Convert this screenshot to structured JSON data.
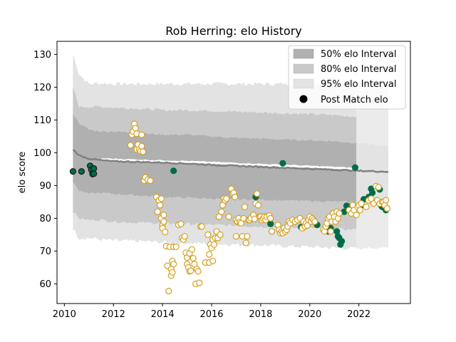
{
  "chart_data": {
    "type": "scatter",
    "title": "Rob Herring: elo History",
    "xlabel": "",
    "ylabel": "elo score",
    "xlim": [
      2009.7,
      2024.1
    ],
    "ylim": [
      54,
      134
    ],
    "x_ticks": [
      2010,
      2012,
      2014,
      2016,
      2018,
      2020,
      2022
    ],
    "y_ticks": [
      60,
      70,
      80,
      90,
      100,
      110,
      120,
      130
    ],
    "grid": false,
    "legend_position": "top-right",
    "legend": {
      "band50": "50% elo Interval",
      "band80": "80% elo Interval",
      "band95": "95% elo Interval",
      "points": "Post Match elo"
    },
    "colors": {
      "band50": "#b0b0b0",
      "band80": "#c9c9c9",
      "band95": "#e3e3e3",
      "median_line": "#808080",
      "white_line": "#ffffff",
      "win_fill": "#006d4a",
      "loss_fill": "#ffffff",
      "loss_edge": "#d4a020",
      "early_edge": "#1a1a1a"
    },
    "bands": {
      "x": [
        2010.35,
        2010.6,
        2011.0,
        2011.5,
        2012.0,
        2013.0,
        2014.0,
        2015.0,
        2016.0,
        2017.0,
        2018.0,
        2019.0,
        2020.0,
        2021.0,
        2021.9
      ],
      "p50_low": [
        91.0,
        88.5,
        87.5,
        87.8,
        87.5,
        87.0,
        86.5,
        86.3,
        86.0,
        85.8,
        85.7,
        85.5,
        85.3,
        85.1,
        85.0
      ],
      "p50_high": [
        112.0,
        109.0,
        107.0,
        106.5,
        106.5,
        106.0,
        105.5,
        105.5,
        105.0,
        104.5,
        104.3,
        104.0,
        103.8,
        103.5,
        103.0
      ],
      "p80_low": [
        82.0,
        80.0,
        79.5,
        79.5,
        79.0,
        78.7,
        78.5,
        78.3,
        78.0,
        77.8,
        77.5,
        77.3,
        77.0,
        76.8,
        76.5
      ],
      "p80_high": [
        120.0,
        114.0,
        114.0,
        114.0,
        113.8,
        113.5,
        113.0,
        113.0,
        112.8,
        112.5,
        112.3,
        112.0,
        111.8,
        111.5,
        111.0
      ],
      "p95_low": [
        77.0,
        74.0,
        74.0,
        73.5,
        73.2,
        73.0,
        72.7,
        72.5,
        72.2,
        72.0,
        71.8,
        71.5,
        71.3,
        71.0,
        70.8
      ],
      "p95_high": [
        130.0,
        124.0,
        121.0,
        121.2,
        121.0,
        121.0,
        121.0,
        121.0,
        121.0,
        121.0,
        121.0,
        121.0,
        121.0,
        121.0,
        121.0
      ]
    },
    "tail_bands": {
      "x": [
        2021.9,
        2022.5,
        2023.2
      ],
      "p50_low": [
        85.0,
        85.5,
        86.0
      ],
      "p50_high": [
        103.0,
        102.5,
        102.0
      ],
      "p95_low": [
        70.8,
        71.0,
        71.0
      ],
      "p95_high": [
        121.0,
        121.5,
        122.0
      ]
    },
    "median": {
      "x": [
        2010.35,
        2010.6,
        2011.0,
        2011.5,
        2012.0,
        2013.0,
        2014.0,
        2015.0,
        2016.0,
        2017.0,
        2018.0,
        2019.0,
        2020.0,
        2021.0,
        2022.0,
        2023.2
      ],
      "y": [
        101.0,
        99.2,
        98.2,
        97.7,
        97.4,
        97.2,
        97.0,
        96.7,
        96.3,
        96.0,
        95.7,
        95.4,
        95.1,
        94.8,
        94.5,
        94.2
      ]
    },
    "upper_line": {
      "x": [
        2011.5,
        2013.0,
        2015.0,
        2017.0,
        2019.0,
        2021.0,
        2022.0
      ],
      "y": [
        98.0,
        97.6,
        97.2,
        96.6,
        96.0,
        95.4,
        95.0
      ]
    },
    "series": [
      {
        "name": "early",
        "style": "early",
        "points": [
          [
            2010.35,
            94.3
          ],
          [
            2010.7,
            94.3
          ],
          [
            2011.05,
            96.0
          ],
          [
            2011.1,
            94.8
          ],
          [
            2011.15,
            93.5
          ],
          [
            2011.2,
            95.2
          ],
          [
            2011.2,
            93.6
          ]
        ]
      },
      {
        "name": "wins",
        "style": "win",
        "points": [
          [
            2014.45,
            94.5
          ],
          [
            2017.8,
            86.5
          ],
          [
            2018.4,
            78.3
          ],
          [
            2018.45,
            76.0
          ],
          [
            2018.9,
            96.8
          ],
          [
            2019.65,
            77.3
          ],
          [
            2020.3,
            78.0
          ],
          [
            2020.75,
            76.0
          ],
          [
            2020.85,
            77.0
          ],
          [
            2021.0,
            81.0
          ],
          [
            2021.1,
            76.0
          ],
          [
            2021.15,
            74.5
          ],
          [
            2021.2,
            74.0
          ],
          [
            2021.25,
            72.0
          ],
          [
            2021.3,
            73.0
          ],
          [
            2021.4,
            82.0
          ],
          [
            2021.5,
            83.8
          ],
          [
            2021.6,
            83.5
          ],
          [
            2021.85,
            95.5
          ],
          [
            2022.1,
            84.0
          ],
          [
            2022.2,
            85.8
          ],
          [
            2022.4,
            86.5
          ],
          [
            2022.5,
            89.0
          ],
          [
            2022.55,
            87.8
          ],
          [
            2022.85,
            88.8
          ],
          [
            2022.9,
            84.0
          ],
          [
            2022.95,
            83.5
          ],
          [
            2023.05,
            83.8
          ],
          [
            2023.1,
            82.5
          ]
        ]
      },
      {
        "name": "losses",
        "style": "loss",
        "points": [
          [
            2012.7,
            102.3
          ],
          [
            2012.75,
            105.5
          ],
          [
            2012.8,
            106.5
          ],
          [
            2012.85,
            108.8
          ],
          [
            2012.9,
            107.5
          ],
          [
            2012.95,
            105.8
          ],
          [
            2012.95,
            101.0
          ],
          [
            2013.0,
            102.5
          ],
          [
            2013.05,
            101.0
          ],
          [
            2013.1,
            100.5
          ],
          [
            2013.15,
            105.5
          ],
          [
            2013.15,
            102.0
          ],
          [
            2013.2,
            100.3
          ],
          [
            2013.25,
            91.5
          ],
          [
            2013.3,
            92.5
          ],
          [
            2013.4,
            91.8
          ],
          [
            2013.5,
            91.5
          ],
          [
            2013.75,
            86.5
          ],
          [
            2013.8,
            82.0
          ],
          [
            2013.85,
            85.5
          ],
          [
            2013.9,
            84.0
          ],
          [
            2013.95,
            86.0
          ],
          [
            2013.95,
            80.0
          ],
          [
            2014.0,
            78.0
          ],
          [
            2014.0,
            77.0
          ],
          [
            2014.05,
            81.0
          ],
          [
            2014.05,
            79.0
          ],
          [
            2014.1,
            75.8
          ],
          [
            2014.15,
            71.5
          ],
          [
            2014.2,
            65.5
          ],
          [
            2014.25,
            57.8
          ],
          [
            2014.3,
            71.3
          ],
          [
            2014.35,
            64.5
          ],
          [
            2014.35,
            62.5
          ],
          [
            2014.4,
            67.0
          ],
          [
            2014.4,
            63.5
          ],
          [
            2014.45,
            66.0
          ],
          [
            2014.45,
            71.3
          ],
          [
            2014.55,
            71.3
          ],
          [
            2014.65,
            78.0
          ],
          [
            2014.75,
            78.3
          ],
          [
            2014.8,
            74.0
          ],
          [
            2014.85,
            73.5
          ],
          [
            2014.9,
            74.5
          ],
          [
            2014.95,
            69.5
          ],
          [
            2015.0,
            68.0
          ],
          [
            2015.0,
            66.0
          ],
          [
            2015.05,
            65.0
          ],
          [
            2015.1,
            63.8
          ],
          [
            2015.1,
            69.3
          ],
          [
            2015.15,
            64.0
          ],
          [
            2015.2,
            70.5
          ],
          [
            2015.25,
            67.8
          ],
          [
            2015.3,
            66.0
          ],
          [
            2015.35,
            60.0
          ],
          [
            2015.4,
            64.5
          ],
          [
            2015.45,
            63.8
          ],
          [
            2015.5,
            60.3
          ],
          [
            2015.55,
            77.5
          ],
          [
            2015.6,
            77.5
          ],
          [
            2015.75,
            66.5
          ],
          [
            2015.85,
            75.0
          ],
          [
            2015.9,
            66.5
          ],
          [
            2015.9,
            69.0
          ],
          [
            2015.95,
            72.0
          ],
          [
            2016.0,
            71.0
          ],
          [
            2016.05,
            67.0
          ],
          [
            2016.05,
            73.5
          ],
          [
            2016.1,
            72.0
          ],
          [
            2016.15,
            74.0
          ],
          [
            2016.2,
            76.0
          ],
          [
            2016.25,
            74.0
          ],
          [
            2016.3,
            80.5
          ],
          [
            2016.35,
            75.0
          ],
          [
            2016.4,
            82.0
          ],
          [
            2016.45,
            84.0
          ],
          [
            2016.5,
            86.0
          ],
          [
            2016.55,
            85.5
          ],
          [
            2016.6,
            86.0
          ],
          [
            2016.7,
            80.5
          ],
          [
            2016.8,
            89.0
          ],
          [
            2016.85,
            87.5
          ],
          [
            2016.9,
            87.8
          ],
          [
            2016.95,
            86.5
          ],
          [
            2017.0,
            79.5
          ],
          [
            2017.0,
            74.5
          ],
          [
            2017.05,
            79.0
          ],
          [
            2017.1,
            80.0
          ],
          [
            2017.15,
            78.8
          ],
          [
            2017.2,
            78.5
          ],
          [
            2017.25,
            74.5
          ],
          [
            2017.3,
            80.0
          ],
          [
            2017.35,
            83.5
          ],
          [
            2017.4,
            72.5
          ],
          [
            2017.45,
            74.5
          ],
          [
            2017.5,
            79.5
          ],
          [
            2017.55,
            79.5
          ],
          [
            2017.6,
            80.0
          ],
          [
            2017.7,
            81.0
          ],
          [
            2017.75,
            79.8
          ],
          [
            2017.8,
            84.5
          ],
          [
            2017.85,
            87.5
          ],
          [
            2017.9,
            84.0
          ],
          [
            2017.95,
            80.5
          ],
          [
            2018.0,
            80.5
          ],
          [
            2018.05,
            79.5
          ],
          [
            2018.1,
            80.0
          ],
          [
            2018.15,
            80.5
          ],
          [
            2018.2,
            79.5
          ],
          [
            2018.25,
            80.5
          ],
          [
            2018.35,
            80.8
          ],
          [
            2018.4,
            80.0
          ],
          [
            2018.45,
            76.0
          ],
          [
            2018.7,
            78.0
          ],
          [
            2018.75,
            76.5
          ],
          [
            2018.8,
            75.5
          ],
          [
            2018.85,
            76.0
          ],
          [
            2018.9,
            75.5
          ],
          [
            2018.95,
            77.0
          ],
          [
            2019.0,
            76.0
          ],
          [
            2019.05,
            76.5
          ],
          [
            2019.1,
            77.5
          ],
          [
            2019.15,
            79.0
          ],
          [
            2019.2,
            78.5
          ],
          [
            2019.3,
            79.5
          ],
          [
            2019.4,
            79.0
          ],
          [
            2019.5,
            79.5
          ],
          [
            2019.6,
            80.0
          ],
          [
            2019.7,
            77.0
          ],
          [
            2019.75,
            79.0
          ],
          [
            2019.8,
            77.5
          ],
          [
            2019.85,
            78.5
          ],
          [
            2019.9,
            77.8
          ],
          [
            2019.95,
            79.5
          ],
          [
            2020.0,
            80.5
          ],
          [
            2020.05,
            79.0
          ],
          [
            2020.1,
            80.0
          ],
          [
            2020.15,
            79.5
          ],
          [
            2020.2,
            79.0
          ],
          [
            2020.55,
            76.5
          ],
          [
            2020.6,
            76.0
          ],
          [
            2020.65,
            77.5
          ],
          [
            2020.7,
            78.5
          ],
          [
            2020.75,
            80.0
          ],
          [
            2020.8,
            80.5
          ],
          [
            2020.85,
            76.0
          ],
          [
            2020.9,
            79.0
          ],
          [
            2020.95,
            81.5
          ],
          [
            2021.0,
            80.5
          ],
          [
            2021.05,
            79.0
          ],
          [
            2021.1,
            82.0
          ],
          [
            2021.15,
            80.0
          ],
          [
            2021.2,
            81.5
          ],
          [
            2021.6,
            82.5
          ],
          [
            2021.7,
            81.5
          ],
          [
            2021.75,
            84.0
          ],
          [
            2021.8,
            82.5
          ],
          [
            2021.9,
            81.0
          ],
          [
            2021.95,
            83.5
          ],
          [
            2022.0,
            84.0
          ],
          [
            2022.05,
            82.5
          ],
          [
            2022.1,
            84.5
          ],
          [
            2022.3,
            83.5
          ],
          [
            2022.4,
            85.5
          ],
          [
            2022.5,
            86.0
          ],
          [
            2022.6,
            84.5
          ],
          [
            2022.7,
            89.8
          ],
          [
            2022.75,
            85.5
          ],
          [
            2022.8,
            89.5
          ],
          [
            2022.85,
            84.5
          ],
          [
            2022.95,
            85.0
          ],
          [
            2023.0,
            85.0
          ],
          [
            2023.05,
            84.0
          ],
          [
            2023.1,
            85.5
          ],
          [
            2023.15,
            83.0
          ]
        ]
      }
    ]
  }
}
